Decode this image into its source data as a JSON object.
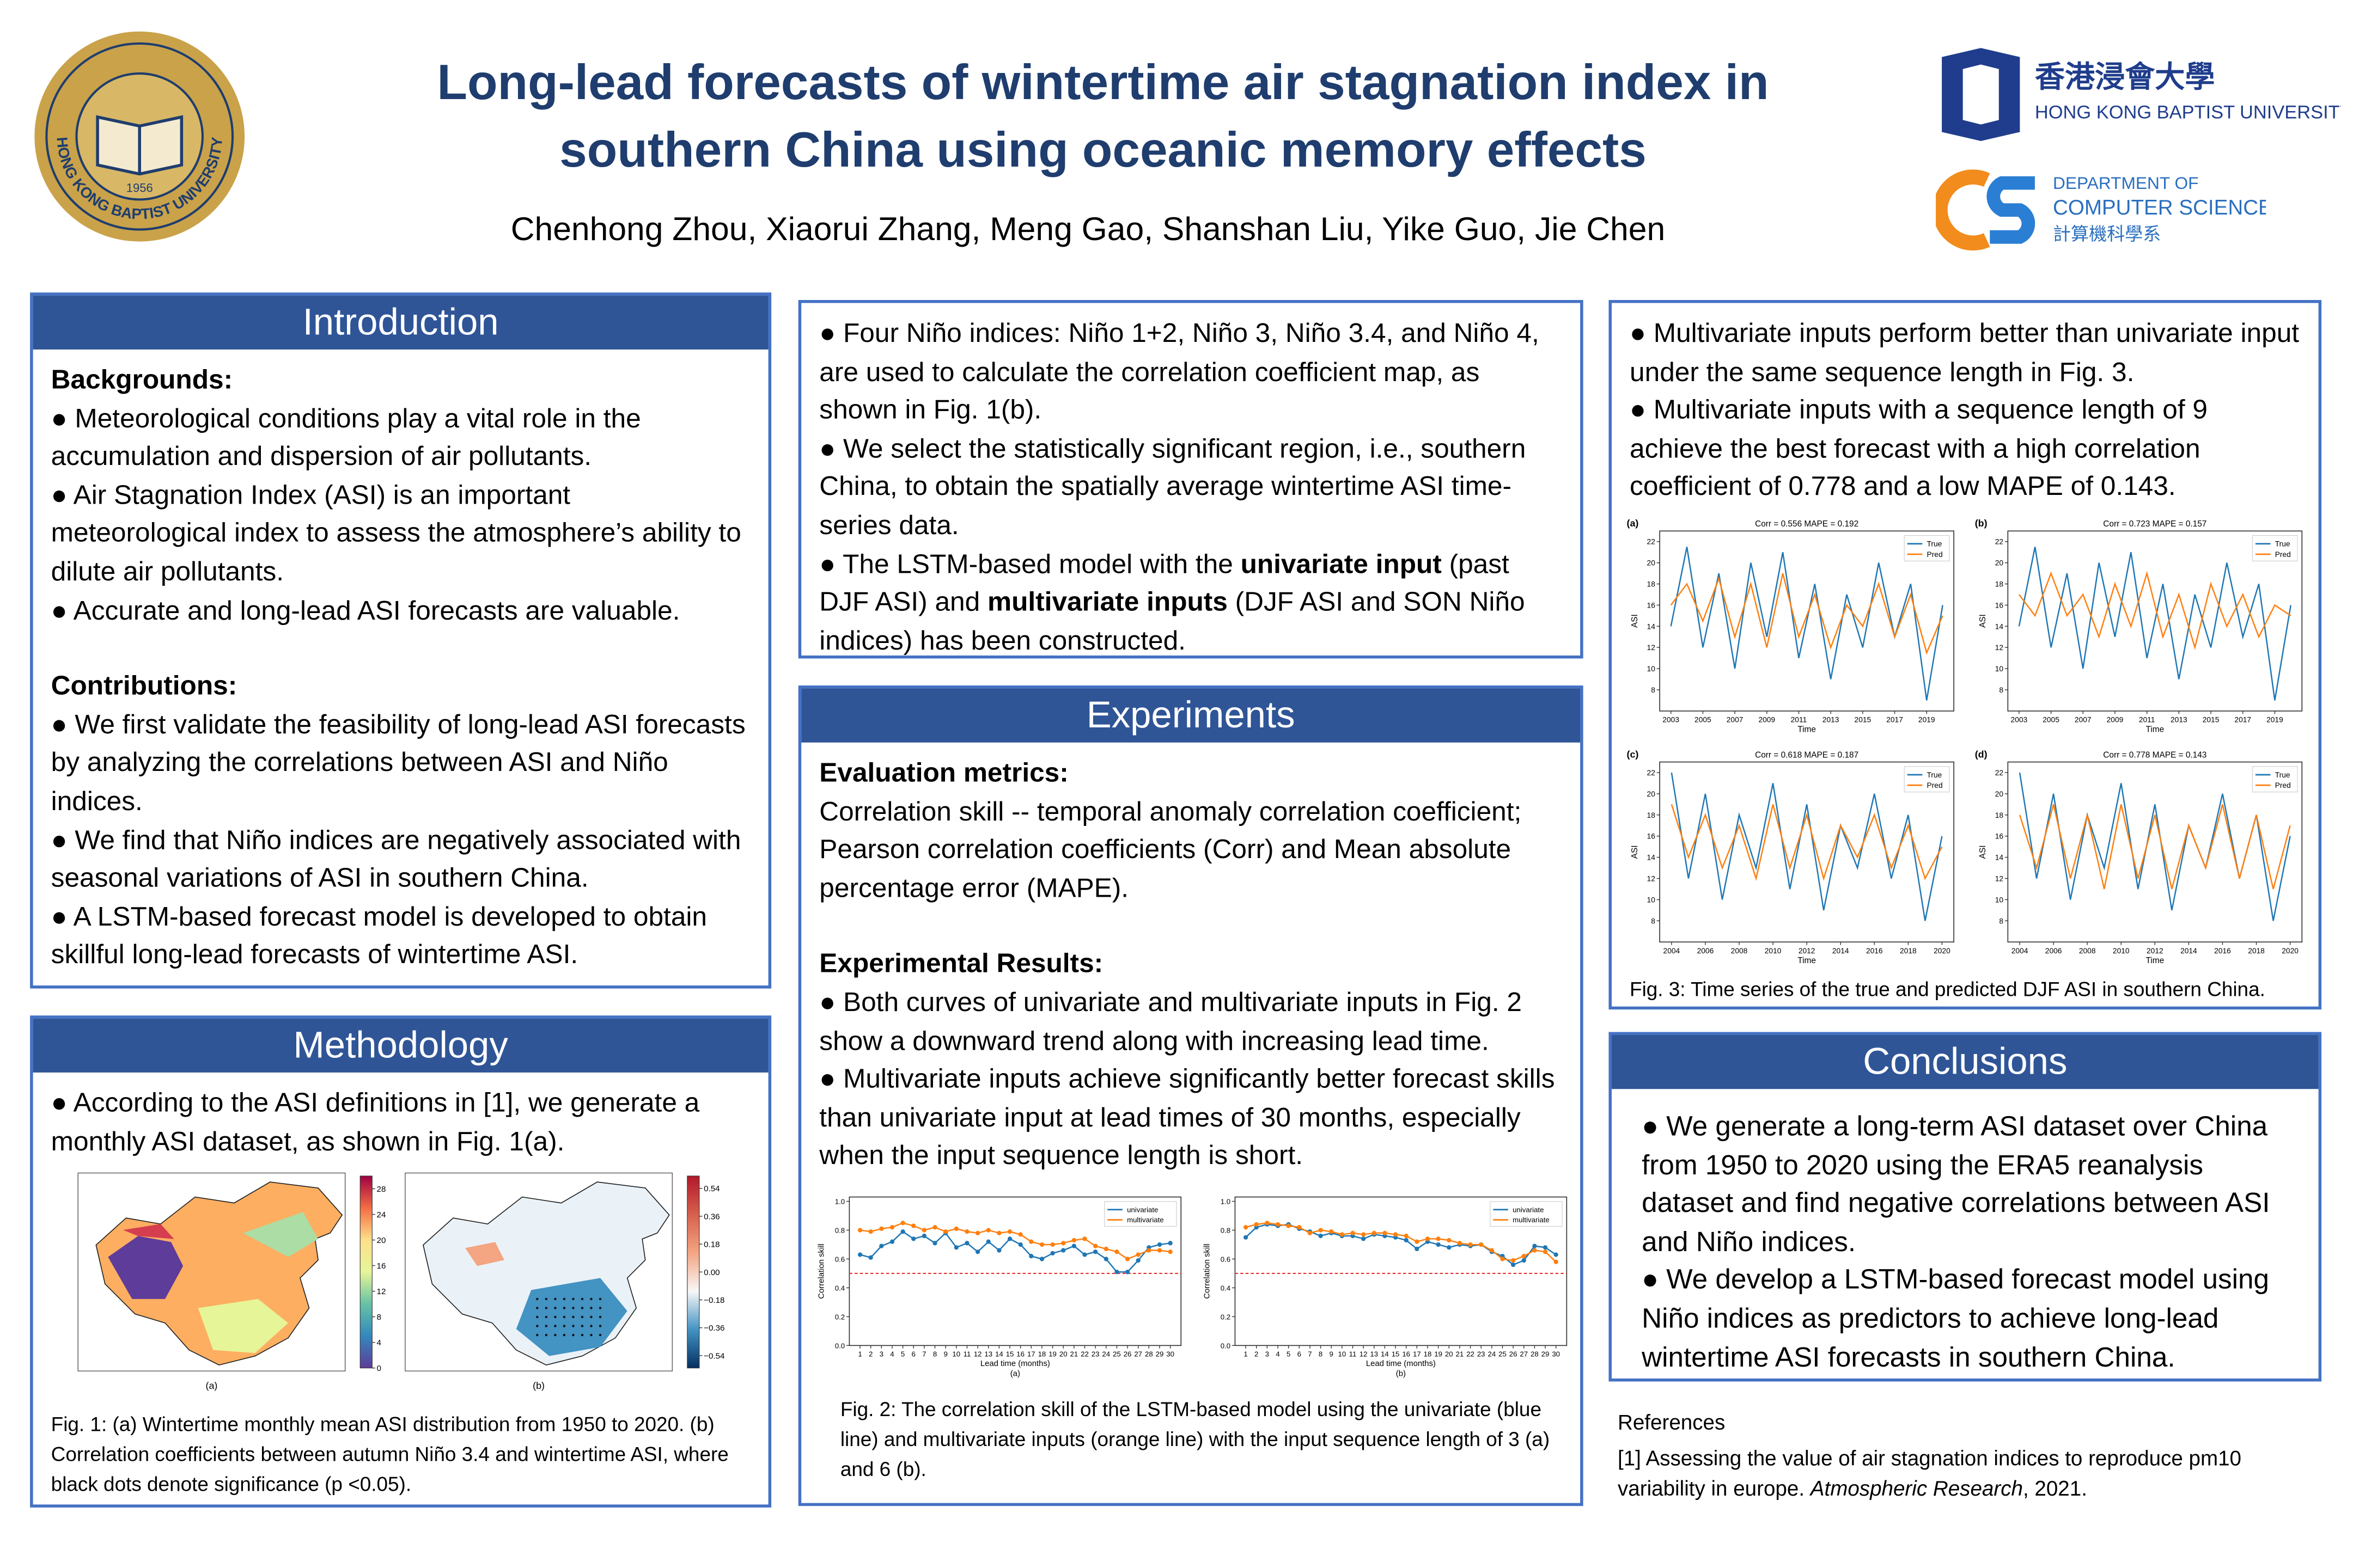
{
  "header": {
    "title_lines": [
      "Long-lead forecasts of wintertime air stagnation index in",
      "southern China using oceanic memory effects"
    ],
    "authors": "Chenhong Zhou, Xiaorui Zhang, Meng Gao, Shanshan Liu, Yike Guo, Jie Chen",
    "seal_text": "HONG KONG BAPTIST UNIVERSITY",
    "seal_year": "1956",
    "hkbu_cn": "香港浸會大學",
    "hkbu_en": "HONG KONG BAPTIST UNIVERSITY",
    "dept_line1": "DEPARTMENT OF",
    "dept_line2": "COMPUTER SCIENCE",
    "dept_cn": "計算機科學系"
  },
  "sections": [
    {
      "heading": "Introduction",
      "groups": [
        [
          [
            {
              "bold": "Backgrounds:"
            }
          ],
          [
            "● Meteorological conditions play a vital role in the accumulation and dispersion of air pollutants."
          ],
          [
            "● Air Stagnation Index (ASI) is an important meteorological index to assess the atmosphere’s ability to dilute air pollutants."
          ],
          [
            "● Accurate and long-lead ASI forecasts are valuable."
          ]
        ],
        [
          [
            {
              "bold": "Contributions:"
            }
          ],
          [
            "● We first validate the feasibility of long-lead ASI forecasts by analyzing the correlations between ASI and Niño indices."
          ],
          [
            "● We find that Niño indices are negatively associated with seasonal variations of ASI in southern China."
          ],
          [
            "● A LSTM-based forecast model is developed to obtain skillful long-lead forecasts of wintertime ASI."
          ]
        ]
      ]
    },
    {
      "heading": "Methodology",
      "groups": [
        [
          [
            "● According to the ASI definitions in [1], we generate a monthly ASI dataset, as shown in Fig. 1(a)."
          ]
        ]
      ]
    },
    {
      "groups": [
        [
          [
            "● Four Niño indices: Niño 1+2, Niño 3, Niño 3.4, and Niño 4, are used to calculate the correlation coefficient map, as shown in Fig. 1(b)."
          ],
          [
            "● We select the statistically significant region, i.e., southern China, to obtain the spatially average wintertime ASI time-series data."
          ],
          [
            "● The LSTM-based model with the ",
            {
              "bold": "univariate input"
            },
            " (past DJF ASI) and ",
            {
              "bold": "multivariate inputs"
            },
            " (DJF ASI and SON Niño indices) has been constructed."
          ]
        ]
      ]
    },
    {
      "heading": "Experiments",
      "groups": [
        [
          [
            {
              "bold": "Evaluation metrics:"
            }
          ],
          [
            "Correlation skill -- temporal anomaly correlation coefficient; Pearson correlation coefficients (Corr) and Mean absolute percentage error (MAPE)."
          ]
        ],
        [
          [
            {
              "bold": "Experimental Results:"
            }
          ],
          [
            "● Both curves of univariate and multivariate inputs in Fig. 2 show a downward trend along with increasing lead time."
          ],
          [
            "● Multivariate inputs achieve significantly better forecast skills than univariate input at lead times of 30 months, especially when the input sequence length is short."
          ]
        ]
      ]
    },
    {
      "groups": [
        [
          [
            "● Multivariate inputs perform better than univariate input under the same sequence length in Fig. 3."
          ],
          [
            "● Multivariate inputs with a sequence length of 9 achieve the best forecast with a high correlation coefficient of 0.778 and a low MAPE of 0.143."
          ]
        ]
      ]
    },
    {
      "heading": "Conclusions",
      "groups": [
        [
          [
            "● We generate a long-term ASI dataset over China from 1950 to 2020 using the ERA5 reanalysis dataset and find negative correlations between ASI and Niño indices."
          ],
          [
            "● We develop a LSTM-based forecast model using Niño indices as predictors to achieve long-lead wintertime ASI forecasts in southern China."
          ]
        ]
      ]
    },
    {
      "heading": "References",
      "groups": [
        [
          [
            "[1] Assessing the value of air stagnation indices to reproduce pm10 variability in europe. ",
            {
              "italic": "Atmospheric Research"
            },
            ", 2021."
          ]
        ]
      ]
    }
  ],
  "fig1": {
    "caption": "Fig. 1: (a) Wintertime monthly mean ASI distribution from 1950 to 2020. (b) Correlation coefficients between autumn Niño 3.4 and wintertime ASI, where black dots denote significance (p <0.05).",
    "panels": [
      {
        "label": "(a)",
        "colorbar_lim": [
          0,
          30
        ],
        "colorbar_ticks": [
          0,
          4,
          8,
          12,
          16,
          20,
          24,
          28
        ]
      },
      {
        "label": "(b)",
        "colorbar_lim": [
          -0.62,
          0.62
        ],
        "colorbar_ticks": [
          {
            "value": -0.54,
            "label": "−0.54"
          },
          {
            "value": -0.36,
            "label": "−0.36"
          },
          {
            "value": -0.18,
            "label": "−0.18"
          },
          {
            "value": 0,
            "label": "0.00"
          },
          {
            "value": 0.18,
            "label": "0.18"
          },
          {
            "value": 0.36,
            "label": "0.36"
          },
          {
            "value": 0.54,
            "label": "0.54"
          }
        ]
      }
    ]
  },
  "fig2": {
    "caption": "Fig. 2: The correlation skill of the LSTM-based model using the univariate (blue line) and multivariate inputs (orange line) with the input sequence length of 3 (a) and 6 (b).",
    "charts": [
      {
        "type": "line",
        "label": "(a)",
        "xlabel": "Lead time (months)",
        "ylabel": "Correlation skill",
        "threshold": 0.5,
        "x": [
          1,
          2,
          3,
          4,
          5,
          6,
          7,
          8,
          9,
          10,
          11,
          12,
          13,
          14,
          15,
          16,
          17,
          18,
          19,
          20,
          21,
          22,
          23,
          24,
          25,
          26,
          27,
          28,
          29,
          30
        ],
        "xlim": [
          0,
          31
        ],
        "xticks": [
          1,
          2,
          3,
          4,
          5,
          6,
          7,
          8,
          9,
          10,
          11,
          12,
          13,
          14,
          15,
          16,
          17,
          18,
          19,
          20,
          21,
          22,
          23,
          24,
          25,
          26,
          27,
          28,
          29,
          30
        ],
        "ylim": [
          0,
          1.03
        ],
        "yticks": [
          {
            "value": 0,
            "label": "0.0"
          },
          {
            "value": 0.2,
            "label": "0.2"
          },
          {
            "value": 0.4,
            "label": "0.4"
          },
          {
            "value": 0.6,
            "label": "0.6"
          },
          {
            "value": 0.8,
            "label": "0.8"
          },
          {
            "value": 1,
            "label": "1.0"
          }
        ],
        "series": [
          {
            "name": "univariate",
            "color": "#1f77b4",
            "values": [
              0.63,
              0.61,
              0.69,
              0.72,
              0.79,
              0.74,
              0.76,
              0.71,
              0.78,
              0.68,
              0.71,
              0.65,
              0.72,
              0.66,
              0.74,
              0.7,
              0.62,
              0.6,
              0.64,
              0.66,
              0.69,
              0.63,
              0.65,
              0.6,
              0.51,
              0.51,
              0.59,
              0.68,
              0.7,
              0.71
            ]
          },
          {
            "name": "multivariate",
            "color": "#ff7f0e",
            "values": [
              0.8,
              0.79,
              0.81,
              0.82,
              0.85,
              0.83,
              0.8,
              0.82,
              0.79,
              0.81,
              0.79,
              0.78,
              0.8,
              0.78,
              0.79,
              0.77,
              0.72,
              0.7,
              0.7,
              0.71,
              0.73,
              0.74,
              0.69,
              0.67,
              0.65,
              0.6,
              0.63,
              0.66,
              0.66,
              0.65
            ]
          }
        ]
      },
      {
        "type": "line",
        "label": "(b)",
        "xlabel": "Lead time (months)",
        "ylabel": "Correlation skill",
        "threshold": 0.5,
        "x": [
          1,
          2,
          3,
          4,
          5,
          6,
          7,
          8,
          9,
          10,
          11,
          12,
          13,
          14,
          15,
          16,
          17,
          18,
          19,
          20,
          21,
          22,
          23,
          24,
          25,
          26,
          27,
          28,
          29,
          30
        ],
        "xlim": [
          0,
          31
        ],
        "xticks": [
          1,
          2,
          3,
          4,
          5,
          6,
          7,
          8,
          9,
          10,
          11,
          12,
          13,
          14,
          15,
          16,
          17,
          18,
          19,
          20,
          21,
          22,
          23,
          24,
          25,
          26,
          27,
          28,
          29,
          30
        ],
        "ylim": [
          0,
          1.03
        ],
        "yticks": [
          {
            "value": 0,
            "label": "0.0"
          },
          {
            "value": 0.2,
            "label": "0.2"
          },
          {
            "value": 0.4,
            "label": "0.4"
          },
          {
            "value": 0.6,
            "label": "0.6"
          },
          {
            "value": 0.8,
            "label": "0.8"
          },
          {
            "value": 1,
            "label": "1.0"
          }
        ],
        "series": [
          {
            "name": "univariate",
            "color": "#1f77b4",
            "values": [
              0.75,
              0.82,
              0.84,
              0.83,
              0.84,
              0.81,
              0.79,
              0.76,
              0.78,
              0.76,
              0.76,
              0.74,
              0.77,
              0.76,
              0.75,
              0.73,
              0.67,
              0.72,
              0.7,
              0.68,
              0.7,
              0.69,
              0.7,
              0.65,
              0.62,
              0.56,
              0.59,
              0.69,
              0.68,
              0.63
            ]
          },
          {
            "name": "multivariate",
            "color": "#ff7f0e",
            "values": [
              0.82,
              0.84,
              0.85,
              0.84,
              0.83,
              0.82,
              0.78,
              0.8,
              0.79,
              0.77,
              0.78,
              0.77,
              0.78,
              0.78,
              0.77,
              0.76,
              0.72,
              0.74,
              0.74,
              0.73,
              0.71,
              0.7,
              0.7,
              0.66,
              0.6,
              0.59,
              0.62,
              0.66,
              0.65,
              0.58
            ]
          }
        ]
      }
    ]
  },
  "fig3": {
    "caption": "Fig. 3: Time series of the true and predicted DJF ASI in southern China.",
    "charts": [
      {
        "type": "line",
        "label": "(a)",
        "title": "Corr = 0.556   MAPE = 0.192",
        "xlabel": "Time",
        "ylabel": "ASI",
        "x": [
          2003,
          2004,
          2005,
          2006,
          2007,
          2008,
          2009,
          2010,
          2011,
          2012,
          2013,
          2014,
          2015,
          2016,
          2017,
          2018,
          2019,
          2020
        ],
        "xlim": [
          2002.3,
          2020.7
        ],
        "xticks": [
          2003,
          2005,
          2007,
          2009,
          2011,
          2013,
          2015,
          2017,
          2019
        ],
        "ylim": [
          6,
          23
        ],
        "yticks": [
          8,
          10,
          12,
          14,
          16,
          18,
          20,
          22
        ],
        "series": [
          {
            "name": "True",
            "color": "#1f77b4",
            "values": [
              14,
              21.5,
              12,
              19,
              10,
              20,
              13,
              21,
              11,
              18,
              9,
              17,
              12,
              20,
              13,
              18,
              7,
              16
            ]
          },
          {
            "name": "Pred",
            "color": "#ff7f0e",
            "values": [
              16,
              18,
              14.5,
              18.5,
              13,
              18,
              12,
              19,
              13,
              17,
              12,
              16,
              14,
              18,
              13,
              17,
              11.5,
              15
            ]
          }
        ]
      },
      {
        "type": "line",
        "label": "(b)",
        "title": "Corr = 0.723   MAPE = 0.157",
        "xlabel": "Time",
        "ylabel": "ASI",
        "x": [
          2003,
          2004,
          2005,
          2006,
          2007,
          2008,
          2009,
          2010,
          2011,
          2012,
          2013,
          2014,
          2015,
          2016,
          2017,
          2018,
          2019,
          2020
        ],
        "xlim": [
          2002.3,
          2020.7
        ],
        "xticks": [
          2003,
          2005,
          2007,
          2009,
          2011,
          2013,
          2015,
          2017,
          2019
        ],
        "ylim": [
          6,
          23
        ],
        "yticks": [
          8,
          10,
          12,
          14,
          16,
          18,
          20,
          22
        ],
        "series": [
          {
            "name": "True",
            "color": "#1f77b4",
            "values": [
              14,
              21.5,
              12,
              19,
              10,
              20,
              13,
              21,
              11,
              18,
              9,
              17,
              12,
              20,
              13,
              18,
              7,
              16
            ]
          },
          {
            "name": "Pred",
            "color": "#ff7f0e",
            "values": [
              17,
              15,
              19,
              15,
              17,
              13,
              18,
              14,
              19,
              13,
              17,
              12,
              18,
              14,
              17,
              13,
              16,
              15
            ]
          }
        ]
      },
      {
        "type": "line",
        "label": "(c)",
        "title": "Corr = 0.618   MAPE = 0.187",
        "xlabel": "Time",
        "ylabel": "ASI",
        "x": [
          2004,
          2005,
          2006,
          2007,
          2008,
          2009,
          2010,
          2011,
          2012,
          2013,
          2014,
          2015,
          2016,
          2017,
          2018,
          2019,
          2020
        ],
        "xlim": [
          2003.3,
          2020.7
        ],
        "xticks": [
          2004,
          2006,
          2008,
          2010,
          2012,
          2014,
          2016,
          2018,
          2020
        ],
        "ylim": [
          6,
          23
        ],
        "yticks": [
          8,
          10,
          12,
          14,
          16,
          18,
          20,
          22
        ],
        "series": [
          {
            "name": "True",
            "color": "#1f77b4",
            "values": [
              22,
              12,
              20,
              10,
              18,
              13,
              21,
              11,
              19,
              9,
              17,
              13,
              20,
              12,
              18,
              8,
              16
            ]
          },
          {
            "name": "Pred",
            "color": "#ff7f0e",
            "values": [
              19,
              14,
              18,
              13,
              17,
              12,
              19,
              13,
              18,
              12,
              17,
              14,
              18,
              13,
              17,
              12,
              15
            ]
          }
        ]
      },
      {
        "type": "line",
        "label": "(d)",
        "title": "Corr = 0.778   MAPE = 0.143",
        "xlabel": "Time",
        "ylabel": "ASI",
        "x": [
          2004,
          2005,
          2006,
          2007,
          2008,
          2009,
          2010,
          2011,
          2012,
          2013,
          2014,
          2015,
          2016,
          2017,
          2018,
          2019,
          2020
        ],
        "xlim": [
          2003.3,
          2020.7
        ],
        "xticks": [
          2004,
          2006,
          2008,
          2010,
          2012,
          2014,
          2016,
          2018,
          2020
        ],
        "ylim": [
          6,
          23
        ],
        "yticks": [
          8,
          10,
          12,
          14,
          16,
          18,
          20,
          22
        ],
        "series": [
          {
            "name": "True",
            "color": "#1f77b4",
            "values": [
              22,
              12,
              20,
              10,
              18,
              13,
              21,
              11,
              19,
              9,
              17,
              13,
              20,
              12,
              18,
              8,
              16
            ]
          },
          {
            "name": "Pred",
            "color": "#ff7f0e",
            "values": [
              18,
              13,
              19,
              12,
              18,
              11,
              19,
              12,
              18,
              11,
              17,
              13,
              19,
              12,
              18,
              11,
              17
            ]
          }
        ]
      }
    ]
  }
}
